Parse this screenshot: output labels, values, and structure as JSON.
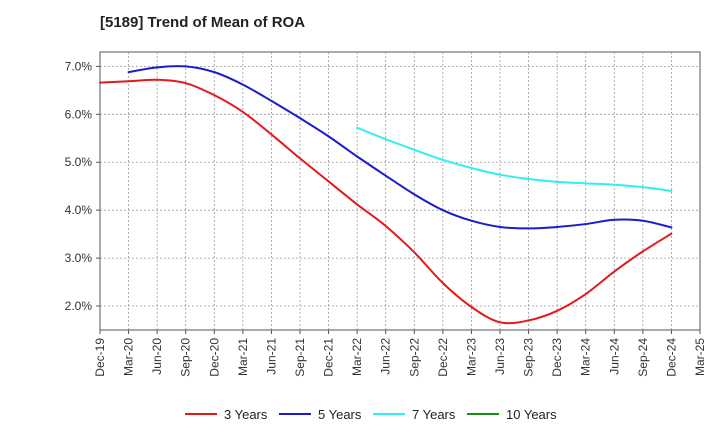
{
  "chart_data": {
    "type": "line",
    "title": "[5189]  Trend of Mean of ROA",
    "xlabel": "",
    "ylabel": "",
    "ylim": [
      1.5,
      7.3
    ],
    "yticks": [
      2.0,
      3.0,
      4.0,
      5.0,
      6.0,
      7.0
    ],
    "ytick_labels": [
      "2.0%",
      "3.0%",
      "4.0%",
      "5.0%",
      "6.0%",
      "7.0%"
    ],
    "grid": true,
    "legend_position": "bottom",
    "categories": [
      "Dec-19",
      "Mar-20",
      "Jun-20",
      "Sep-20",
      "Dec-20",
      "Mar-21",
      "Jun-21",
      "Sep-21",
      "Dec-21",
      "Mar-22",
      "Jun-22",
      "Sep-22",
      "Dec-22",
      "Mar-23",
      "Jun-23",
      "Sep-23",
      "Dec-23",
      "Mar-24",
      "Jun-24",
      "Sep-24",
      "Dec-24",
      "Mar-25"
    ],
    "series": [
      {
        "name": "3 Years",
        "color": "#e31a1c",
        "values": [
          6.66,
          6.69,
          6.72,
          6.65,
          6.4,
          6.05,
          5.58,
          5.08,
          4.6,
          4.12,
          3.67,
          3.12,
          2.48,
          1.98,
          1.66,
          1.7,
          1.9,
          2.25,
          2.72,
          3.14,
          3.51,
          null
        ]
      },
      {
        "name": "5 Years",
        "color": "#1c1ccc",
        "values": [
          null,
          6.88,
          6.98,
          7.0,
          6.88,
          6.62,
          6.28,
          5.92,
          5.54,
          5.12,
          4.72,
          4.33,
          4.0,
          3.78,
          3.65,
          3.62,
          3.65,
          3.71,
          3.8,
          3.78,
          3.64,
          null
        ]
      },
      {
        "name": "7 Years",
        "color": "#33eeee",
        "values": [
          null,
          null,
          null,
          null,
          null,
          null,
          null,
          null,
          null,
          5.72,
          5.48,
          5.26,
          5.05,
          4.88,
          4.74,
          4.65,
          4.59,
          4.56,
          4.53,
          4.48,
          4.4,
          null
        ]
      },
      {
        "name": "10 Years",
        "color": "#1a8c1a",
        "values": [
          null,
          null,
          null,
          null,
          null,
          null,
          null,
          null,
          null,
          null,
          null,
          null,
          null,
          null,
          null,
          null,
          null,
          null,
          null,
          null,
          null,
          null
        ]
      }
    ]
  }
}
